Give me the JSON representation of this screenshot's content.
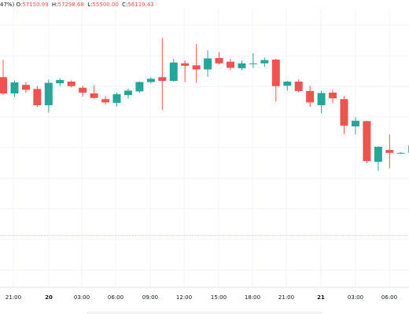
{
  "legend": {
    "change_fragment": "47%)",
    "o_label": "O:",
    "o_value": "57150.99",
    "h_label": "H:",
    "h_value": "57298.68",
    "l_label": "L:",
    "l_value": "55500.00",
    "c_label": "C:",
    "c_value": "56119.43"
  },
  "colors": {
    "up": "#26a69a",
    "down": "#ef5350",
    "grid": "#f0f3fa",
    "axis_text": "#131722",
    "price_line": "#f2b8b5"
  },
  "chart_data": {
    "type": "candlestick",
    "x_tick_labels": [
      "21:00",
      "20",
      "03:00",
      "06:00",
      "09:00",
      "12:00",
      "15:00",
      "18:00",
      "21:00",
      "21",
      "03:00",
      "06:00"
    ],
    "x_tick_bold": [
      false,
      true,
      false,
      false,
      false,
      false,
      false,
      false,
      false,
      true,
      false,
      false
    ],
    "ylim": [
      53350,
      58750
    ],
    "reference_price": 53350,
    "grid": true,
    "candles": [
      {
        "o": 57240,
        "h": 57670,
        "l": 56800,
        "c": 56840
      },
      {
        "o": 56840,
        "h": 57160,
        "l": 56750,
        "c": 57110
      },
      {
        "o": 57050,
        "h": 57120,
        "l": 56860,
        "c": 56930
      },
      {
        "o": 56950,
        "h": 57020,
        "l": 56500,
        "c": 56550
      },
      {
        "o": 56550,
        "h": 57180,
        "l": 56370,
        "c": 57100
      },
      {
        "o": 57090,
        "h": 57210,
        "l": 57020,
        "c": 57170
      },
      {
        "o": 57130,
        "h": 57160,
        "l": 56990,
        "c": 57020
      },
      {
        "o": 56980,
        "h": 57030,
        "l": 56760,
        "c": 56860
      },
      {
        "o": 56840,
        "h": 57040,
        "l": 56710,
        "c": 56730
      },
      {
        "o": 56700,
        "h": 56780,
        "l": 56570,
        "c": 56620
      },
      {
        "o": 56610,
        "h": 56860,
        "l": 56520,
        "c": 56820
      },
      {
        "o": 56800,
        "h": 56960,
        "l": 56710,
        "c": 56910
      },
      {
        "o": 56890,
        "h": 57140,
        "l": 56860,
        "c": 57120
      },
      {
        "o": 57120,
        "h": 57240,
        "l": 57080,
        "c": 57200
      },
      {
        "o": 57240,
        "h": 58200,
        "l": 56440,
        "c": 57150
      },
      {
        "o": 57150,
        "h": 57690,
        "l": 57130,
        "c": 57600
      },
      {
        "o": 57580,
        "h": 57650,
        "l": 57120,
        "c": 57520
      },
      {
        "o": 57530,
        "h": 58050,
        "l": 57100,
        "c": 57430
      },
      {
        "o": 57430,
        "h": 57900,
        "l": 57250,
        "c": 57700
      },
      {
        "o": 57710,
        "h": 57860,
        "l": 57550,
        "c": 57580
      },
      {
        "o": 57620,
        "h": 57690,
        "l": 57410,
        "c": 57470
      },
      {
        "o": 57460,
        "h": 57650,
        "l": 57410,
        "c": 57580
      },
      {
        "o": 57580,
        "h": 57830,
        "l": 57470,
        "c": 57580
      },
      {
        "o": 57580,
        "h": 57720,
        "l": 57490,
        "c": 57660
      },
      {
        "o": 57670,
        "h": 57690,
        "l": 56640,
        "c": 57020
      },
      {
        "o": 57030,
        "h": 57150,
        "l": 56910,
        "c": 57130
      },
      {
        "o": 57130,
        "h": 57190,
        "l": 56870,
        "c": 56900
      },
      {
        "o": 56900,
        "h": 57030,
        "l": 56510,
        "c": 56620
      },
      {
        "o": 56550,
        "h": 56910,
        "l": 56350,
        "c": 56850
      },
      {
        "o": 56860,
        "h": 56930,
        "l": 56600,
        "c": 56720
      },
      {
        "o": 56700,
        "h": 56770,
        "l": 55850,
        "c": 56050
      },
      {
        "o": 56030,
        "h": 56260,
        "l": 55840,
        "c": 56170
      },
      {
        "o": 56160,
        "h": 56170,
        "l": 55120,
        "c": 55180
      },
      {
        "o": 55160,
        "h": 55540,
        "l": 54940,
        "c": 55530
      },
      {
        "o": 55450,
        "h": 55830,
        "l": 55000,
        "c": 55380
      },
      {
        "o": 55380,
        "h": 55400,
        "l": 55350,
        "c": 55380
      },
      {
        "o": 55380,
        "h": 55650,
        "l": 55280,
        "c": 55560
      }
    ]
  }
}
